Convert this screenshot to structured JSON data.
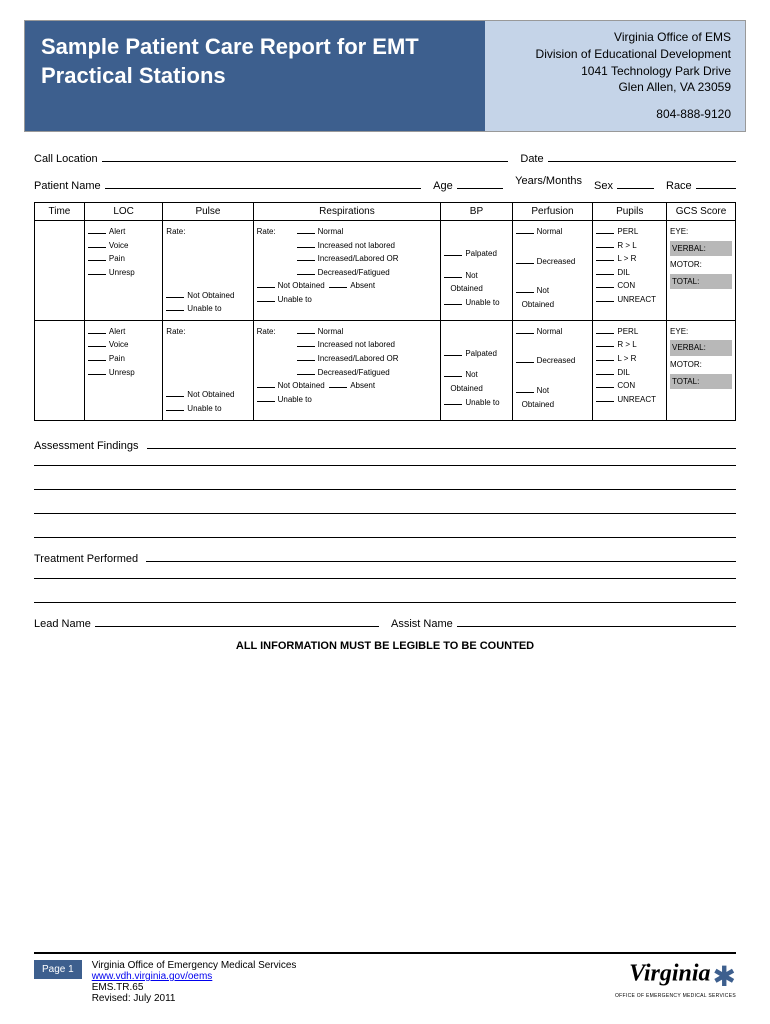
{
  "header": {
    "title": "Sample Patient Care Report for EMT Practical Stations",
    "org_line1": "Virginia Office of EMS",
    "org_line2": "Division of Educational Development",
    "org_line3": "1041 Technology Park Drive",
    "org_line4": "Glen Allen, VA 23059",
    "phone": "804-888-9120"
  },
  "fields": {
    "call_location": "Call Location",
    "date": "Date",
    "patient_name": "Patient Name",
    "age": "Age",
    "years_months": "Years/Months",
    "sex": "Sex",
    "race": "Race"
  },
  "table": {
    "headers": [
      "Time",
      "LOC",
      "Pulse",
      "Respirations",
      "BP",
      "Perfusion",
      "Pupils",
      "GCS Score"
    ],
    "loc": [
      "Alert",
      "Voice",
      "Pain",
      "Unresp"
    ],
    "pulse": {
      "rate": "Rate:",
      "not_obtained": "Not Obtained",
      "unable": "Unable to"
    },
    "resp": {
      "rate": "Rate:",
      "normal": "Normal",
      "inc_nl": "Increased not labored",
      "inc_lab": "Increased/Labored OR",
      "dec_fat": "Decreased/Fatigued",
      "not_obtained": "Not Obtained",
      "absent": "Absent",
      "unable": "Unable to"
    },
    "bp": {
      "palpated": "Palpated",
      "not": "Not",
      "obtained": "Obtained",
      "unable": "Unable to"
    },
    "perfusion": {
      "normal": "Normal",
      "decreased": "Decreased",
      "not": "Not",
      "obtained": "Obtained"
    },
    "pupils": [
      "PERL",
      "R > L",
      "L > R",
      "DIL",
      "CON",
      "UNREACT"
    ],
    "gcs": {
      "eye": "EYE:",
      "verbal": "VERBAL:",
      "motor": "MOTOR:",
      "total": "TOTAL:"
    }
  },
  "sections": {
    "assessment": "Assessment Findings",
    "treatment": "Treatment Performed",
    "lead_name": "Lead Name",
    "assist_name": "Assist Name",
    "notice": "ALL INFORMATION MUST BE LEGIBLE TO BE COUNTED"
  },
  "footer": {
    "page": "Page 1",
    "org": "Virginia Office of Emergency Medical Services",
    "url": "www.vdh.virginia.gov/oems",
    "form_id": "EMS.TR.65",
    "revised": "Revised: July 2011",
    "logo_text": "Virginia",
    "logo_sub": "OFFICE OF EMERGENCY MEDICAL SERVICES"
  },
  "colors": {
    "header_blue": "#3d5f8e",
    "header_light": "#c5d4e8",
    "shaded": "#b8b8b8"
  }
}
